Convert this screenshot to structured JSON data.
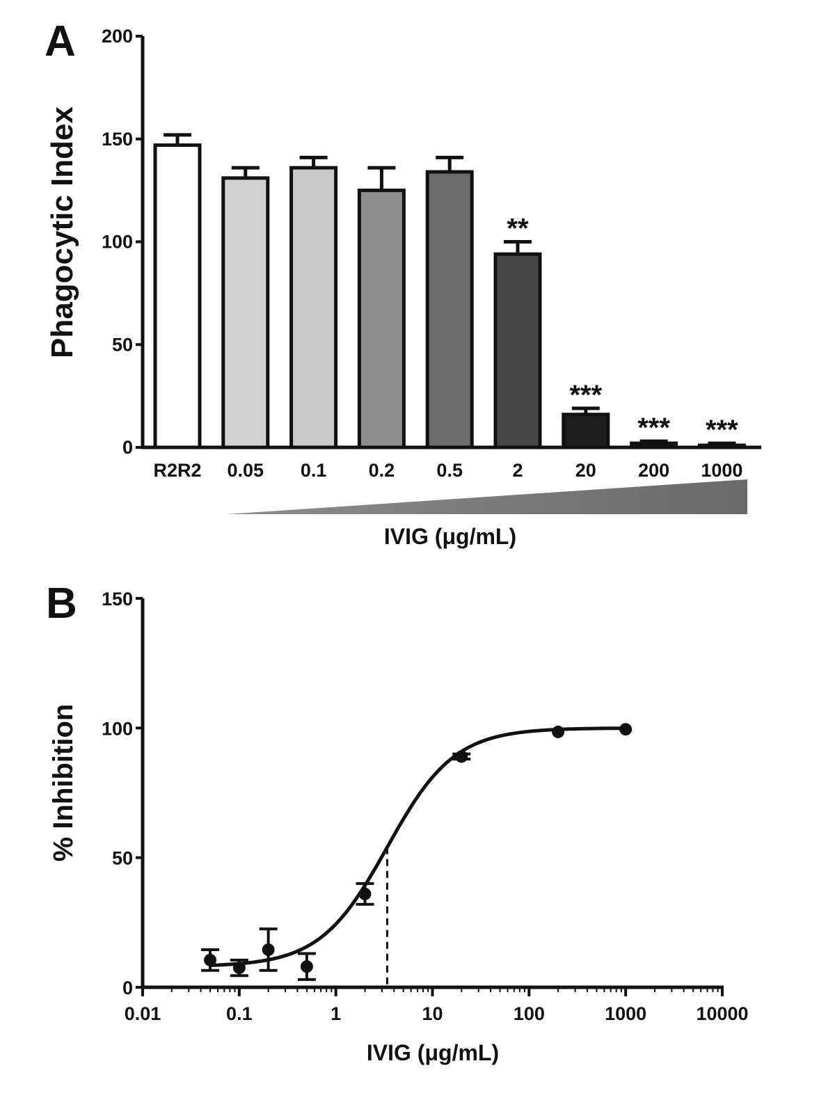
{
  "chart_data": [
    {
      "panel": "A",
      "type": "bar",
      "ylabel": "Phagocytic Index",
      "xlabel": "IVIG (μg/mL)",
      "ylim": [
        0,
        200
      ],
      "yticks": [
        "0",
        "50",
        "100",
        "150",
        "200"
      ],
      "categories": [
        "R2R2",
        "0.05",
        "0.1",
        "0.2",
        "0.5",
        "2",
        "20",
        "200",
        "1000"
      ],
      "values": [
        147,
        131,
        136,
        125,
        134,
        94,
        16,
        2,
        1
      ],
      "errors": [
        5,
        5,
        5,
        11,
        7,
        6,
        3,
        1,
        1
      ],
      "significance": [
        "",
        "",
        "",
        "",
        "",
        "**",
        "***",
        "***",
        "***"
      ],
      "bar_colors": [
        "#ffffff",
        "#d2d2d2",
        "#cacaca",
        "#8e8e8e",
        "#6c6c6c",
        "#474747",
        "#1e1e1e",
        "#111111",
        "#111111"
      ],
      "concentration_wedge": true
    },
    {
      "panel": "B",
      "type": "scatter",
      "ylabel": "% Inhibition",
      "xlabel": "IVIG (μg/mL)",
      "xscale": "log",
      "xlim": [
        0.01,
        10000
      ],
      "ylim": [
        0,
        150
      ],
      "xticks": [
        "0.01",
        "0.1",
        "1",
        "10",
        "100",
        "1000",
        "10000"
      ],
      "yticks": [
        "0",
        "50",
        "100",
        "150"
      ],
      "points": [
        {
          "x": 0.05,
          "y": 10.5,
          "err": 4
        },
        {
          "x": 0.1,
          "y": 7.5,
          "err": 3
        },
        {
          "x": 0.2,
          "y": 14.5,
          "err": 8
        },
        {
          "x": 0.5,
          "y": 8,
          "err": 5
        },
        {
          "x": 2,
          "y": 36,
          "err": 4
        },
        {
          "x": 20,
          "y": 89,
          "err": 1
        },
        {
          "x": 200,
          "y": 98.5,
          "err": 0.5
        },
        {
          "x": 1000,
          "y": 99.5,
          "err": 0.5
        }
      ],
      "fit": {
        "type": "sigmoid",
        "bottom": 8,
        "top": 100,
        "ic50": 3.4,
        "hill": 1.25
      },
      "ic50_marker": {
        "x": 3.4,
        "style": "dashed"
      }
    }
  ]
}
